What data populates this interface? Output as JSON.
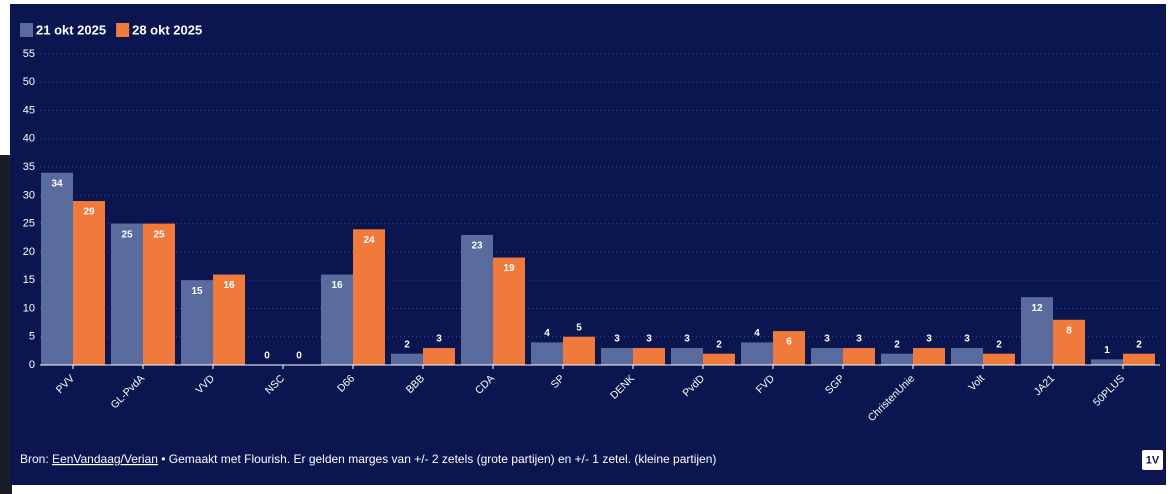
{
  "chart_data": {
    "type": "bar",
    "categories": [
      "PVV",
      "GL-PvdA",
      "VVD",
      "NSC",
      "D66",
      "BBB",
      "CDA",
      "SP",
      "DENK",
      "PvdD",
      "FVD",
      "SGP",
      "ChristenUnie",
      "Volt",
      "JA21",
      "50PLUS"
    ],
    "series": [
      {
        "name": "21 okt 2025",
        "color": "#5a6b9e",
        "values": [
          34,
          25,
          15,
          0,
          16,
          2,
          23,
          4,
          3,
          3,
          4,
          3,
          2,
          3,
          12,
          1
        ]
      },
      {
        "name": "28 okt 2025",
        "color": "#ef7a3b",
        "values": [
          29,
          25,
          16,
          0,
          24,
          3,
          19,
          5,
          3,
          2,
          6,
          3,
          3,
          2,
          8,
          2
        ]
      }
    ],
    "ylim": [
      0,
      55
    ],
    "yticks": [
      0,
      5,
      10,
      15,
      20,
      25,
      30,
      35,
      40,
      45,
      50,
      55
    ],
    "grid": true
  },
  "footer": {
    "prefix": "Bron:",
    "link": "EenVandaag/Verian",
    "text": "• Gemaakt met Flourish. Er gelden marges van +/- 2 zetels (grote partijen) en +/- 1 zetel. (kleine partijen)"
  },
  "logo": "1V"
}
